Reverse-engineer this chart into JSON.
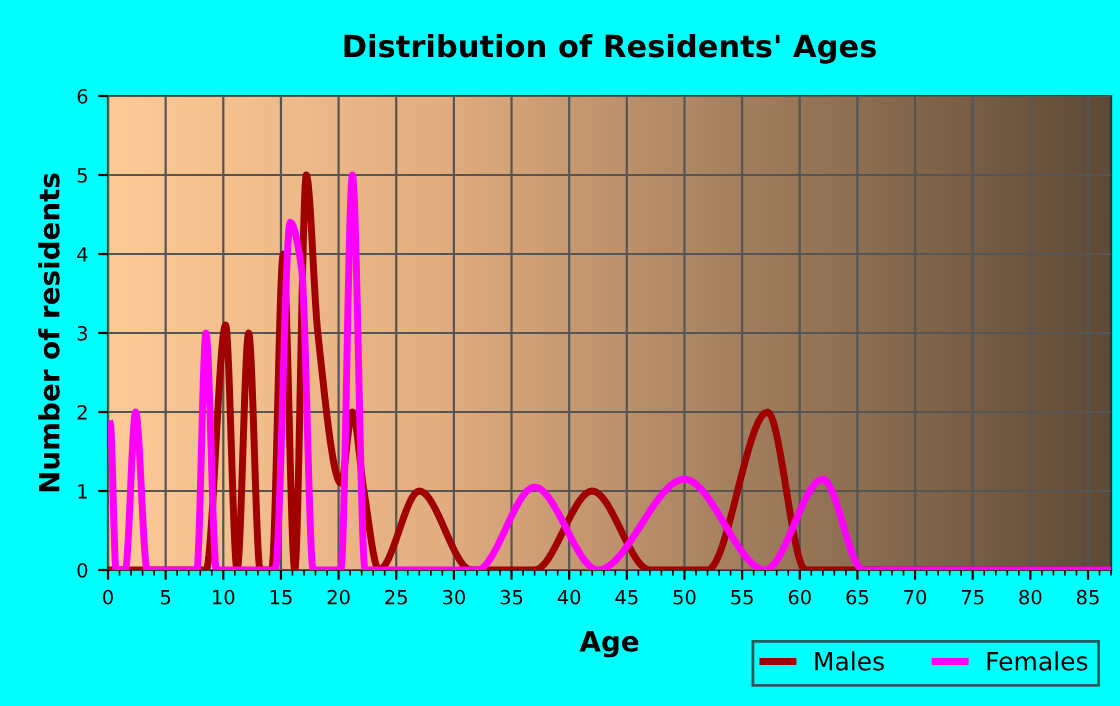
{
  "chart_data": {
    "type": "line",
    "title": "Distribution of Residents' Ages",
    "xlabel": "Age",
    "ylabel": "Number of residents",
    "xlim": [
      0,
      87
    ],
    "xticks": [
      0,
      5,
      10,
      15,
      20,
      25,
      30,
      35,
      40,
      45,
      50,
      55,
      60,
      65,
      70,
      75,
      80,
      85
    ],
    "ylim": [
      0,
      6
    ],
    "yticks": [
      0,
      1,
      2,
      3,
      4,
      5,
      6
    ],
    "grid": true,
    "legend": "bottom right",
    "series": [
      {
        "name": "Males",
        "color": "#a00000",
        "x": [
          0,
          8.5,
          10.2,
          11.2,
          12.2,
          13.2,
          14.2,
          15.2,
          16.2,
          17.2,
          18.2,
          20.2,
          21.2,
          22.2,
          23.5,
          27,
          31.5,
          37,
          42,
          47,
          52,
          57.2,
          60.5,
          87
        ],
        "values": [
          0,
          0,
          3.1,
          0,
          3,
          0,
          0,
          4,
          0,
          5,
          3,
          1.1,
          2,
          1,
          0,
          1,
          0,
          0,
          1,
          0,
          0,
          2,
          0,
          0
        ]
      },
      {
        "name": "Females",
        "color": "#ff00ff",
        "x": [
          0.2,
          0.7,
          1.5,
          2.4,
          3.4,
          7.7,
          8.5,
          9.4,
          14.5,
          15.8,
          16.8,
          17.8,
          20.2,
          21.2,
          22.3,
          32,
          37,
          42.5,
          50,
          57,
          62,
          65.5,
          87
        ],
        "values": [
          1.85,
          0,
          0,
          2,
          0,
          0,
          3,
          0,
          0,
          4.4,
          3.8,
          0,
          0,
          5,
          0,
          0,
          1.05,
          0,
          1.15,
          0,
          1.15,
          0,
          0
        ]
      }
    ]
  }
}
